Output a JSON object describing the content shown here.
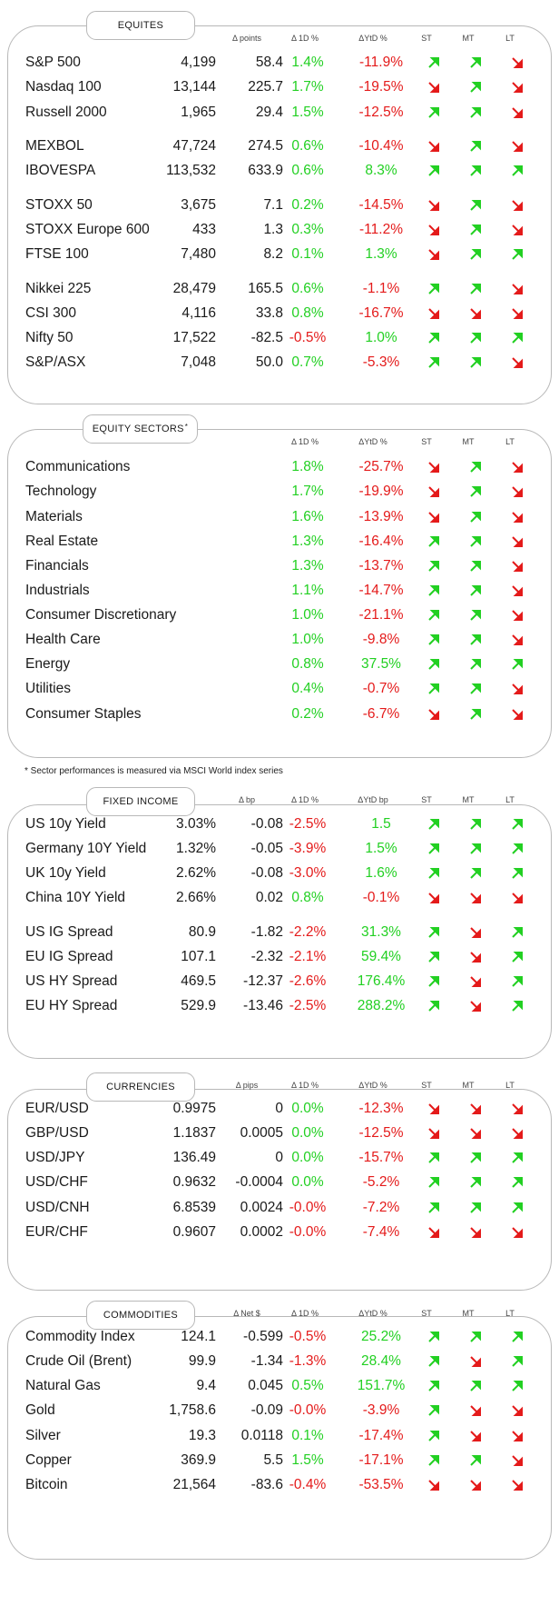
{
  "colors": {
    "positive": "#22d022",
    "negative": "#e41a1a",
    "border": "#b8b8b8"
  },
  "sections": [
    {
      "key": "equities",
      "title": "EQUITES",
      "title_sup": "",
      "headers": {
        "change": "Δ points",
        "d1": "Δ 1D %",
        "ytd": "ΔYtD %",
        "st": "ST",
        "mt": "MT",
        "lt": "LT"
      },
      "rows": [
        {
          "name": "S&P 500",
          "value": "4,199",
          "change": "58.4",
          "d1": "1.4%",
          "ytd": "-11.9%",
          "st": "up",
          "mt": "up",
          "lt": "down"
        },
        {
          "name": "Nasdaq 100",
          "value": "13,144",
          "change": "225.7",
          "d1": "1.7%",
          "ytd": "-19.5%",
          "st": "down",
          "mt": "up",
          "lt": "down"
        },
        {
          "name": "Russell 2000",
          "value": "1,965",
          "change": "29.4",
          "d1": "1.5%",
          "ytd": "-12.5%",
          "st": "up",
          "mt": "up",
          "lt": "down"
        },
        {
          "name": "MEXBOL",
          "value": "47,724",
          "change": "274.5",
          "d1": "0.6%",
          "ytd": "-10.4%",
          "st": "down",
          "mt": "up",
          "lt": "down"
        },
        {
          "name": "IBOVESPA",
          "value": "113,532",
          "change": "633.9",
          "d1": "0.6%",
          "ytd": "8.3%",
          "st": "up",
          "mt": "up",
          "lt": "up"
        },
        {
          "name": "STOXX 50",
          "value": "3,675",
          "change": "7.1",
          "d1": "0.2%",
          "ytd": "-14.5%",
          "st": "down",
          "mt": "up",
          "lt": "down"
        },
        {
          "name": "STOXX Europe 600",
          "value": "433",
          "change": "1.3",
          "d1": "0.3%",
          "ytd": "-11.2%",
          "st": "down",
          "mt": "up",
          "lt": "down"
        },
        {
          "name": "FTSE 100",
          "value": "7,480",
          "change": "8.2",
          "d1": "0.1%",
          "ytd": "1.3%",
          "st": "down",
          "mt": "up",
          "lt": "up"
        },
        {
          "name": "Nikkei 225",
          "value": "28,479",
          "change": "165.5",
          "d1": "0.6%",
          "ytd": "-1.1%",
          "st": "up",
          "mt": "up",
          "lt": "down"
        },
        {
          "name": "CSI 300",
          "value": "4,116",
          "change": "33.8",
          "d1": "0.8%",
          "ytd": "-16.7%",
          "st": "down",
          "mt": "down",
          "lt": "down"
        },
        {
          "name": "Nifty  50",
          "value": "17,522",
          "change": "-82.5",
          "d1": "-0.5%",
          "ytd": "1.0%",
          "st": "up",
          "mt": "up",
          "lt": "up"
        },
        {
          "name": "S&P/ASX",
          "value": "7,048",
          "change": "50.0",
          "d1": "0.7%",
          "ytd": "-5.3%",
          "st": "up",
          "mt": "up",
          "lt": "down"
        }
      ]
    },
    {
      "key": "sectors",
      "title": "EQUITY SECTORS",
      "title_sup": "*",
      "footnote": "* Sector performances is measured via MSCI World index series",
      "headers": {
        "change": "",
        "d1": "Δ 1D %",
        "ytd": "ΔYtD %",
        "st": "ST",
        "mt": "MT",
        "lt": "LT"
      },
      "rows": [
        {
          "name": "Communications",
          "value": "",
          "change": "",
          "d1": "1.8%",
          "ytd": "-25.7%",
          "st": "down",
          "mt": "up",
          "lt": "down"
        },
        {
          "name": "Technology",
          "value": "",
          "change": "",
          "d1": "1.7%",
          "ytd": "-19.9%",
          "st": "down",
          "mt": "up",
          "lt": "down"
        },
        {
          "name": "Materials",
          "value": "",
          "change": "",
          "d1": "1.6%",
          "ytd": "-13.9%",
          "st": "down",
          "mt": "up",
          "lt": "down"
        },
        {
          "name": "Real Estate",
          "value": "",
          "change": "",
          "d1": "1.3%",
          "ytd": "-16.4%",
          "st": "up",
          "mt": "up",
          "lt": "down"
        },
        {
          "name": "Financials",
          "value": "",
          "change": "",
          "d1": "1.3%",
          "ytd": "-13.7%",
          "st": "up",
          "mt": "up",
          "lt": "down"
        },
        {
          "name": "Industrials",
          "value": "",
          "change": "",
          "d1": "1.1%",
          "ytd": "-14.7%",
          "st": "up",
          "mt": "up",
          "lt": "down"
        },
        {
          "name": "Consumer Discretionary",
          "value": "",
          "change": "",
          "d1": "1.0%",
          "ytd": "-21.1%",
          "st": "up",
          "mt": "up",
          "lt": "down"
        },
        {
          "name": "Health Care",
          "value": "",
          "change": "",
          "d1": "1.0%",
          "ytd": "-9.8%",
          "st": "up",
          "mt": "up",
          "lt": "down"
        },
        {
          "name": "Energy",
          "value": "",
          "change": "",
          "d1": "0.8%",
          "ytd": "37.5%",
          "st": "up",
          "mt": "up",
          "lt": "up"
        },
        {
          "name": "Utilities",
          "value": "",
          "change": "",
          "d1": "0.4%",
          "ytd": "-0.7%",
          "st": "up",
          "mt": "up",
          "lt": "down"
        },
        {
          "name": "Consumer Staples",
          "value": "",
          "change": "",
          "d1": "0.2%",
          "ytd": "-6.7%",
          "st": "down",
          "mt": "up",
          "lt": "down"
        }
      ]
    },
    {
      "key": "fixed_income",
      "title": "FIXED INCOME",
      "title_sup": "",
      "headers": {
        "change": "Δ bp",
        "d1": "Δ 1D %",
        "ytd": "ΔYtD bp",
        "st": "ST",
        "mt": "MT",
        "lt": "LT"
      },
      "rows": [
        {
          "name": "US 10y Yield",
          "value": "3.03%",
          "change": "-0.08",
          "d1": "-2.5%",
          "ytd": "1.5",
          "st": "up",
          "mt": "up",
          "lt": "up"
        },
        {
          "name": "Germany 10Y Yield",
          "value": "1.32%",
          "change": "-0.05",
          "d1": "-3.9%",
          "ytd": "1.5%",
          "st": "up",
          "mt": "up",
          "lt": "up"
        },
        {
          "name": "UK 10y Yield",
          "value": "2.62%",
          "change": "-0.08",
          "d1": "-3.0%",
          "ytd": "1.6%",
          "st": "up",
          "mt": "up",
          "lt": "up"
        },
        {
          "name": "China 10Y Yield",
          "value": "2.66%",
          "change": "0.02",
          "d1": "0.8%",
          "ytd": "-0.1%",
          "st": "down",
          "mt": "down",
          "lt": "down"
        },
        {
          "name": "US IG Spread",
          "value": "80.9",
          "change": "-1.82",
          "d1": "-2.2%",
          "ytd": "31.3%",
          "st": "up",
          "mt": "down",
          "lt": "up"
        },
        {
          "name": "EU IG Spread",
          "value": "107.1",
          "change": "-2.32",
          "d1": "-2.1%",
          "ytd": "59.4%",
          "st": "up",
          "mt": "down",
          "lt": "up"
        },
        {
          "name": "US HY Spread",
          "value": "469.5",
          "change": "-12.37",
          "d1": "-2.6%",
          "ytd": "176.4%",
          "st": "up",
          "mt": "down",
          "lt": "up"
        },
        {
          "name": "EU HY Spread",
          "value": "529.9",
          "change": "-13.46",
          "d1": "-2.5%",
          "ytd": "288.2%",
          "st": "up",
          "mt": "down",
          "lt": "up"
        }
      ]
    },
    {
      "key": "currencies",
      "title": "CURRENCIES",
      "title_sup": "",
      "headers": {
        "change": "Δ pips",
        "d1": "Δ 1D %",
        "ytd": "ΔYtD %",
        "st": "ST",
        "mt": "MT",
        "lt": "LT"
      },
      "rows": [
        {
          "name": "EUR/USD",
          "value": "0.9975",
          "change": "0",
          "d1": "0.0%",
          "ytd": "-12.3%",
          "st": "down",
          "mt": "down",
          "lt": "down"
        },
        {
          "name": "GBP/USD",
          "value": "1.1837",
          "change": "0.0005",
          "d1": "0.0%",
          "ytd": "-12.5%",
          "st": "down",
          "mt": "down",
          "lt": "down"
        },
        {
          "name": "USD/JPY",
          "value": "136.49",
          "change": "0",
          "d1": "0.0%",
          "ytd": "-15.7%",
          "st": "up",
          "mt": "up",
          "lt": "up"
        },
        {
          "name": "USD/CHF",
          "value": "0.9632",
          "change": "-0.0004",
          "d1": "0.0%",
          "ytd": "-5.2%",
          "st": "up",
          "mt": "up",
          "lt": "up"
        },
        {
          "name": "USD/CNH",
          "value": "6.8539",
          "change": "0.0024",
          "d1": "-0.0%",
          "ytd": "-7.2%",
          "st": "up",
          "mt": "up",
          "lt": "up"
        },
        {
          "name": "EUR/CHF",
          "value": "0.9607",
          "change": "0.0002",
          "d1": "-0.0%",
          "ytd": "-7.4%",
          "st": "down",
          "mt": "down",
          "lt": "down"
        }
      ]
    },
    {
      "key": "commodities",
      "title": "COMMODITIES",
      "title_sup": "",
      "headers": {
        "change": "Δ Net $",
        "d1": "Δ 1D %",
        "ytd": "ΔYtD %",
        "st": "ST",
        "mt": "MT",
        "lt": "LT"
      },
      "rows": [
        {
          "name": "Commodity Index",
          "value": "124.1",
          "change": "-0.599",
          "d1": "-0.5%",
          "ytd": "25.2%",
          "st": "up",
          "mt": "up",
          "lt": "up"
        },
        {
          "name": "Crude Oil (Brent)",
          "value": "99.9",
          "change": "-1.34",
          "d1": "-1.3%",
          "ytd": "28.4%",
          "st": "up",
          "mt": "down",
          "lt": "up"
        },
        {
          "name": "Natural Gas",
          "value": "9.4",
          "change": "0.045",
          "d1": "0.5%",
          "ytd": "151.7%",
          "st": "up",
          "mt": "up",
          "lt": "up"
        },
        {
          "name": "Gold",
          "value": "1,758.6",
          "change": "-0.09",
          "d1": "-0.0%",
          "ytd": "-3.9%",
          "st": "up",
          "mt": "down",
          "lt": "down"
        },
        {
          "name": "Silver",
          "value": "19.3",
          "change": "0.0118",
          "d1": "0.1%",
          "ytd": "-17.4%",
          "st": "up",
          "mt": "down",
          "lt": "down"
        },
        {
          "name": "Copper",
          "value": "369.9",
          "change": "5.5",
          "d1": "1.5%",
          "ytd": "-17.1%",
          "st": "up",
          "mt": "up",
          "lt": "down"
        },
        {
          "name": "Bitcoin",
          "value": "21,564",
          "change": "-83.6",
          "d1": "-0.4%",
          "ytd": "-53.5%",
          "st": "down",
          "mt": "down",
          "lt": "down"
        }
      ]
    }
  ]
}
